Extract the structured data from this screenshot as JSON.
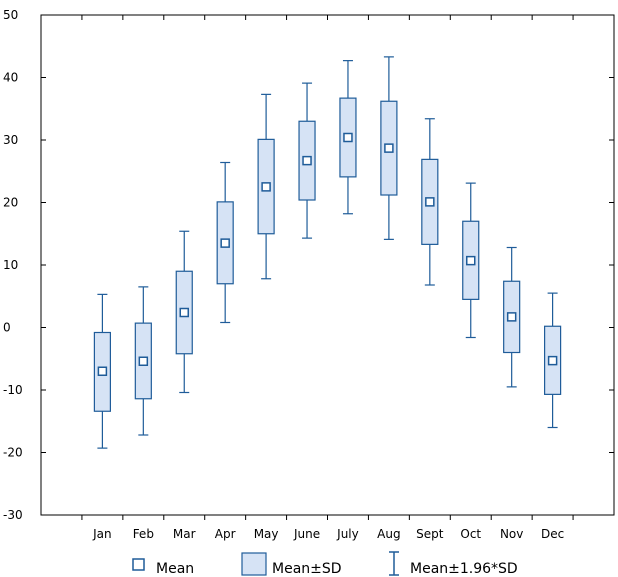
{
  "chart_data": {
    "type": "box",
    "categories": [
      "Jan",
      "Feb",
      "Mar",
      "Apr",
      "May",
      "June",
      "July",
      "Aug",
      "Sept",
      "Oct",
      "Nov",
      "Dec"
    ],
    "series": [
      {
        "name": "Mean",
        "values": [
          -7.0,
          -5.4,
          2.4,
          13.5,
          22.5,
          26.7,
          30.4,
          28.7,
          20.1,
          10.7,
          1.7,
          -5.3
        ]
      },
      {
        "name": "Mean±SD",
        "low": [
          -13.4,
          -11.4,
          -4.2,
          7.0,
          15.0,
          20.4,
          24.1,
          21.2,
          13.3,
          4.5,
          -4.0,
          -10.7
        ],
        "high": [
          -0.8,
          0.7,
          9.0,
          20.1,
          30.1,
          33.0,
          36.7,
          36.2,
          26.9,
          17.0,
          7.4,
          0.2
        ]
      },
      {
        "name": "Mean±1.96*SD",
        "low": [
          -19.3,
          -17.2,
          -10.4,
          0.8,
          7.8,
          14.3,
          18.2,
          14.1,
          6.8,
          -1.6,
          -9.5,
          -16.0
        ],
        "high": [
          5.3,
          6.5,
          15.4,
          26.4,
          37.3,
          39.1,
          42.7,
          43.3,
          33.4,
          23.1,
          12.8,
          5.5
        ]
      }
    ],
    "xlabel": "",
    "ylabel": "",
    "ylim": [
      -30,
      50
    ],
    "yticks": [
      -30,
      -20,
      -10,
      0,
      10,
      20,
      30,
      40,
      50
    ],
    "grid": false,
    "legend": "bottom",
    "colors": {
      "box_fill": "#d6e3f5",
      "stroke": "#1f5c99",
      "axis": "#000000"
    }
  },
  "legend": {
    "mean": "Mean",
    "sd": "Mean±SD",
    "ci": "Mean±1.96*SD"
  }
}
